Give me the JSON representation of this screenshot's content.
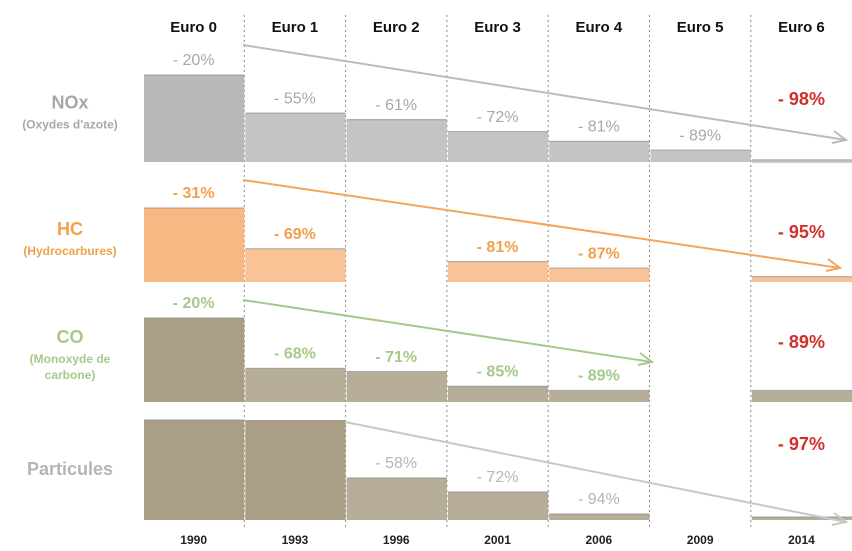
{
  "columns": [
    {
      "label": "Euro 0",
      "year": "1990"
    },
    {
      "label": "Euro 1",
      "year": "1993"
    },
    {
      "label": "Euro 2",
      "year": "1996"
    },
    {
      "label": "Euro 3",
      "year": "2001"
    },
    {
      "label": "Euro 4",
      "year": "2006"
    },
    {
      "label": "Euro 5",
      "year": "2009"
    },
    {
      "label": "Euro 6",
      "year": "2014"
    }
  ],
  "rows": [
    {
      "name": "NOx",
      "subtitle": [
        "(Oxydes d'azote)"
      ],
      "color": "#a8a8a8",
      "bar_color": "#b5b5b5",
      "values": [
        -20,
        -55,
        -61,
        -72,
        -81,
        -89,
        -98
      ],
      "value_labels": [
        "- 20%",
        "- 55%",
        "- 61%",
        "- 72%",
        "- 81%",
        "- 89%",
        "- 98%"
      ]
    },
    {
      "name": "HC",
      "subtitle": [
        "(Hydrocarbures)"
      ],
      "color": "#f0a04b",
      "bar_color": "#f8b47c",
      "values": [
        -31,
        -69,
        null,
        -81,
        -87,
        null,
        -95
      ],
      "value_labels": [
        "- 31%",
        "- 69%",
        null,
        "- 81%",
        "- 87%",
        null,
        "- 95%"
      ]
    },
    {
      "name": "CO",
      "subtitle": [
        "(Monoxyde de",
        "carbone)"
      ],
      "color": "#a6c98a",
      "bar_color": "#a59a80",
      "values": [
        -20,
        -68,
        -71,
        -85,
        -89,
        null,
        -89
      ],
      "value_labels": [
        "- 20%",
        "- 68%",
        "- 71%",
        "- 85%",
        "- 89%",
        null,
        "- 89%"
      ]
    },
    {
      "name": "Particules",
      "subtitle": [],
      "color": "#b5b5b5",
      "bar_color": "#a59a80",
      "values": [
        null,
        null,
        -58,
        -72,
        -94,
        null,
        -97
      ],
      "value_labels": [
        null,
        null,
        "- 58%",
        "- 72%",
        "- 94%",
        null,
        "- 97%"
      ]
    }
  ]
}
